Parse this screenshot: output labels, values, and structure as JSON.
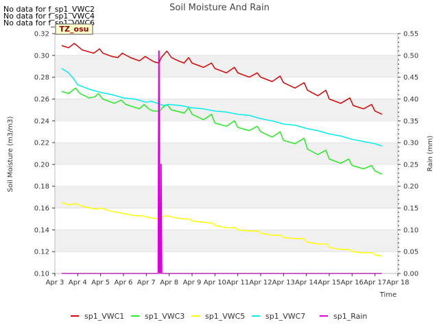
{
  "notices": [
    "No data for f_sp1_VWC2",
    "No data for f_sp1_VWC4",
    "No data for f_sp1_VWC6"
  ],
  "chart_data": {
    "type": "line",
    "title": "Soil Moisture And Rain",
    "xlabel": "Time",
    "ylabel": "Soil Moisture (m3/m3)",
    "y2label": "Rain (mm)",
    "tz_label": "TZ_osu",
    "xlim": [
      3,
      18
    ],
    "ylim": [
      0.1,
      0.32
    ],
    "y2lim": [
      0.0,
      0.55
    ],
    "x_ticks": [
      3,
      4,
      5,
      6,
      7,
      8,
      9,
      10,
      11,
      12,
      13,
      14,
      15,
      16,
      17,
      18
    ],
    "x_tick_labels": [
      "Apr 3",
      "Apr 4",
      "Apr 5",
      "Apr 6",
      "Apr 7",
      "Apr 8",
      "Apr 9",
      "Apr 10",
      "Apr 11",
      "Apr 12",
      "Apr 13",
      "Apr 14",
      "Apr 15",
      "Apr 16",
      "Apr 17",
      "Apr 18"
    ],
    "y_ticks": [
      "0.10",
      "0.12",
      "0.14",
      "0.16",
      "0.18",
      "0.20",
      "0.22",
      "0.24",
      "0.26",
      "0.28",
      "0.30",
      "0.32"
    ],
    "y2_ticks": [
      "0.00",
      "0.05",
      "0.10",
      "0.15",
      "0.20",
      "0.25",
      "0.30",
      "0.35",
      "0.40",
      "0.45",
      "0.50",
      "0.55"
    ],
    "grid": "horizontal bands",
    "legend_placement": "bottom",
    "series": [
      {
        "name": "sp1_VWC1",
        "color": "#dd0000",
        "axis": "left",
        "points": [
          [
            3.3,
            0.309
          ],
          [
            3.6,
            0.307
          ],
          [
            3.85,
            0.311
          ],
          [
            4.2,
            0.305
          ],
          [
            4.7,
            0.302
          ],
          [
            4.95,
            0.306
          ],
          [
            5.1,
            0.302
          ],
          [
            5.5,
            0.299
          ],
          [
            5.75,
            0.298
          ],
          [
            5.95,
            0.302
          ],
          [
            6.3,
            0.298
          ],
          [
            6.7,
            0.295
          ],
          [
            6.95,
            0.299
          ],
          [
            7.1,
            0.297
          ],
          [
            7.35,
            0.294
          ],
          [
            7.55,
            0.293
          ],
          [
            7.65,
            0.298
          ],
          [
            7.9,
            0.304
          ],
          [
            8.1,
            0.298
          ],
          [
            8.4,
            0.295
          ],
          [
            8.65,
            0.293
          ],
          [
            8.85,
            0.298
          ],
          [
            9.0,
            0.293
          ],
          [
            9.5,
            0.289
          ],
          [
            9.85,
            0.293
          ],
          [
            10.0,
            0.288
          ],
          [
            10.5,
            0.284
          ],
          [
            10.85,
            0.289
          ],
          [
            11.0,
            0.284
          ],
          [
            11.5,
            0.28
          ],
          [
            11.85,
            0.284
          ],
          [
            12.0,
            0.28
          ],
          [
            12.5,
            0.276
          ],
          [
            12.85,
            0.281
          ],
          [
            13.0,
            0.275
          ],
          [
            13.5,
            0.27
          ],
          [
            13.9,
            0.275
          ],
          [
            14.05,
            0.268
          ],
          [
            14.5,
            0.263
          ],
          [
            14.85,
            0.268
          ],
          [
            15.0,
            0.26
          ],
          [
            15.5,
            0.256
          ],
          [
            15.9,
            0.261
          ],
          [
            16.05,
            0.254
          ],
          [
            16.5,
            0.251
          ],
          [
            16.85,
            0.255
          ],
          [
            17.0,
            0.249
          ],
          [
            17.3,
            0.246
          ]
        ]
      },
      {
        "name": "sp1_VWC3",
        "color": "#22ee22",
        "axis": "left",
        "points": [
          [
            3.3,
            0.267
          ],
          [
            3.6,
            0.265
          ],
          [
            3.9,
            0.27
          ],
          [
            4.1,
            0.265
          ],
          [
            4.5,
            0.261
          ],
          [
            4.75,
            0.262
          ],
          [
            4.9,
            0.265
          ],
          [
            5.1,
            0.26
          ],
          [
            5.6,
            0.256
          ],
          [
            5.9,
            0.259
          ],
          [
            6.1,
            0.255
          ],
          [
            6.7,
            0.251
          ],
          [
            6.9,
            0.255
          ],
          [
            7.1,
            0.251
          ],
          [
            7.3,
            0.249
          ],
          [
            7.6,
            0.249
          ],
          [
            7.7,
            0.252
          ],
          [
            7.9,
            0.255
          ],
          [
            8.1,
            0.25
          ],
          [
            8.5,
            0.248
          ],
          [
            8.65,
            0.247
          ],
          [
            8.85,
            0.252
          ],
          [
            9.0,
            0.246
          ],
          [
            9.5,
            0.241
          ],
          [
            9.85,
            0.246
          ],
          [
            10.0,
            0.238
          ],
          [
            10.5,
            0.235
          ],
          [
            10.85,
            0.24
          ],
          [
            11.0,
            0.234
          ],
          [
            11.5,
            0.231
          ],
          [
            11.85,
            0.235
          ],
          [
            12.0,
            0.23
          ],
          [
            12.5,
            0.225
          ],
          [
            12.85,
            0.23
          ],
          [
            13.0,
            0.222
          ],
          [
            13.5,
            0.219
          ],
          [
            13.9,
            0.224
          ],
          [
            14.05,
            0.214
          ],
          [
            14.5,
            0.209
          ],
          [
            14.85,
            0.213
          ],
          [
            15.0,
            0.205
          ],
          [
            15.5,
            0.201
          ],
          [
            15.85,
            0.205
          ],
          [
            16.0,
            0.199
          ],
          [
            16.5,
            0.196
          ],
          [
            16.85,
            0.199
          ],
          [
            17.0,
            0.194
          ],
          [
            17.3,
            0.191
          ]
        ]
      },
      {
        "name": "sp1_VWC5",
        "color": "#ffff00",
        "axis": "left",
        "points": [
          [
            3.3,
            0.165
          ],
          [
            3.6,
            0.163
          ],
          [
            3.9,
            0.164
          ],
          [
            4.3,
            0.161
          ],
          [
            4.8,
            0.159
          ],
          [
            5.0,
            0.16
          ],
          [
            5.5,
            0.157
          ],
          [
            6.0,
            0.155
          ],
          [
            6.5,
            0.153
          ],
          [
            6.8,
            0.153
          ],
          [
            7.2,
            0.151
          ],
          [
            7.55,
            0.15
          ],
          [
            7.7,
            0.152
          ],
          [
            7.9,
            0.153
          ],
          [
            8.3,
            0.151
          ],
          [
            8.7,
            0.15
          ],
          [
            8.9,
            0.15
          ],
          [
            9.0,
            0.148
          ],
          [
            9.5,
            0.147
          ],
          [
            9.9,
            0.146
          ],
          [
            10.0,
            0.144
          ],
          [
            10.5,
            0.142
          ],
          [
            10.9,
            0.142
          ],
          [
            11.0,
            0.14
          ],
          [
            11.5,
            0.139
          ],
          [
            11.9,
            0.139
          ],
          [
            12.0,
            0.137
          ],
          [
            12.5,
            0.135
          ],
          [
            12.9,
            0.135
          ],
          [
            13.0,
            0.133
          ],
          [
            13.5,
            0.132
          ],
          [
            13.9,
            0.132
          ],
          [
            14.0,
            0.129
          ],
          [
            14.5,
            0.127
          ],
          [
            14.9,
            0.127
          ],
          [
            15.0,
            0.124
          ],
          [
            15.5,
            0.122
          ],
          [
            15.9,
            0.122
          ],
          [
            16.0,
            0.12
          ],
          [
            16.5,
            0.119
          ],
          [
            16.9,
            0.119
          ],
          [
            17.0,
            0.117
          ],
          [
            17.3,
            0.116
          ]
        ]
      },
      {
        "name": "sp1_VWC7",
        "color": "#00eeee",
        "axis": "left",
        "points": [
          [
            3.3,
            0.288
          ],
          [
            3.6,
            0.284
          ],
          [
            3.8,
            0.279
          ],
          [
            4.0,
            0.273
          ],
          [
            4.5,
            0.269
          ],
          [
            5.0,
            0.266
          ],
          [
            5.5,
            0.264
          ],
          [
            6.0,
            0.261
          ],
          [
            6.5,
            0.26
          ],
          [
            7.0,
            0.257
          ],
          [
            7.2,
            0.258
          ],
          [
            7.5,
            0.256
          ],
          [
            7.75,
            0.254
          ],
          [
            8.0,
            0.255
          ],
          [
            8.5,
            0.254
          ],
          [
            9.0,
            0.252
          ],
          [
            9.5,
            0.251
          ],
          [
            10.0,
            0.249
          ],
          [
            10.5,
            0.248
          ],
          [
            11.0,
            0.246
          ],
          [
            11.5,
            0.245
          ],
          [
            12.0,
            0.242
          ],
          [
            12.5,
            0.24
          ],
          [
            13.0,
            0.237
          ],
          [
            13.5,
            0.236
          ],
          [
            14.0,
            0.233
          ],
          [
            14.5,
            0.231
          ],
          [
            15.0,
            0.228
          ],
          [
            15.5,
            0.226
          ],
          [
            16.0,
            0.223
          ],
          [
            16.5,
            0.221
          ],
          [
            17.0,
            0.219
          ],
          [
            17.3,
            0.217
          ]
        ]
      },
      {
        "name": "sp1_Rain",
        "color": "#dd00dd",
        "axis": "right",
        "points": [
          [
            3.3,
            0.0
          ],
          [
            7.52,
            0.0
          ],
          [
            7.55,
            0.51
          ],
          [
            7.58,
            0.0
          ],
          [
            7.62,
            0.0
          ],
          [
            7.64,
            0.25
          ],
          [
            7.67,
            0.0
          ],
          [
            17.3,
            0.0
          ]
        ]
      }
    ]
  }
}
